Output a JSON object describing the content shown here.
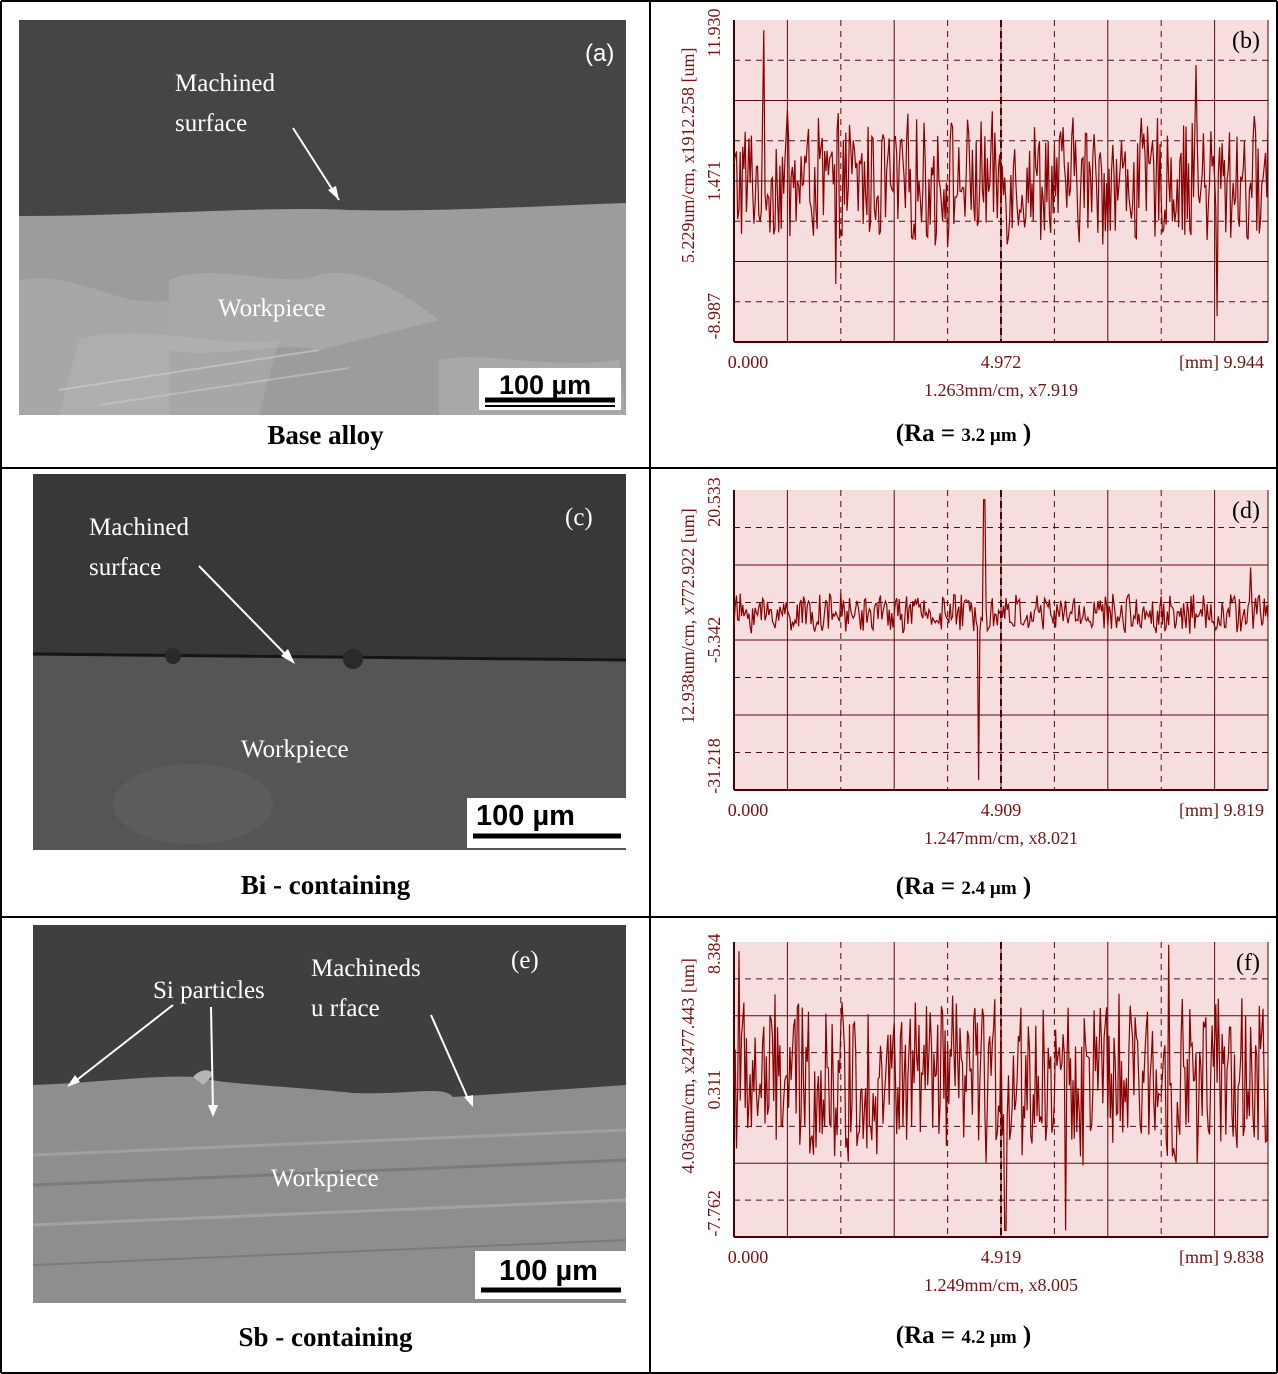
{
  "panels": [
    {
      "id": "a",
      "label": "(a)",
      "annotations": [
        "Machined surface",
        "Workpiece"
      ],
      "scale_bar": "100 µm",
      "caption": "Base alloy"
    },
    {
      "id": "c",
      "label": "(c)",
      "annotations": [
        "Machined surface",
        "Workpiece"
      ],
      "scale_bar": "100 µm",
      "caption": "Bi - containing"
    },
    {
      "id": "e",
      "label": "(e)",
      "annotations": [
        "Machinedsu rface",
        "Si particles",
        "Workpiece"
      ],
      "scale_bar": "100 µm",
      "caption": "Sb - containing"
    }
  ],
  "chart_data": [
    {
      "type": "line",
      "label": "(b)",
      "ylabel": "5.229um/cm, x1912.258   [um]",
      "xlabel": "1.263mm/cm, x7.919",
      "x_ticks": [
        "0.000",
        "4.972",
        "[mm] 9.944"
      ],
      "y_ticks": [
        "11.930",
        "1.471",
        "-8.987"
      ],
      "xlim": [
        0,
        9.944
      ],
      "ylim": [
        -11.0,
        14.0
      ],
      "profile": {
        "mean": 1.471,
        "amplitude": 3.2,
        "spikes": [
          [
            0.55,
            13.2
          ],
          [
            1.0,
            7.0
          ],
          [
            1.9,
            -6.5
          ],
          [
            8.6,
            10.5
          ],
          [
            9.0,
            -9.0
          ]
        ]
      },
      "caption_prefix": "(Ra = ",
      "caption_value": "3.2 µm",
      "caption_suffix": " )",
      "ra": 3.2
    },
    {
      "type": "line",
      "label": "(d)",
      "ylabel": "12.938um/cm, x772.922   [um]",
      "xlabel": "1.247mm/cm, x8.021",
      "x_ticks": [
        "0.000",
        "4.909",
        "[mm] 9.819"
      ],
      "y_ticks": [
        "20.533",
        "-5.342",
        "-31.218"
      ],
      "xlim": [
        0,
        9.819
      ],
      "ylim": [
        -36.0,
        26.0
      ],
      "profile": {
        "mean": 0.5,
        "amplitude": 2.6,
        "spikes": [
          [
            4.6,
            24.0
          ],
          [
            4.5,
            -34.0
          ],
          [
            9.5,
            10.0
          ]
        ]
      },
      "caption_prefix": "(Ra = ",
      "caption_value": "2.4 µm",
      "caption_suffix": " )",
      "ra": 2.4
    },
    {
      "type": "line",
      "label": "(f)",
      "ylabel": "4.036um/cm, x2477.443   [um]",
      "xlabel": "1.249mm/cm, x8.005",
      "x_ticks": [
        "0.000",
        "4.919",
        "[mm] 9.838"
      ],
      "y_ticks": [
        "8.384",
        "0.311",
        "-7.762"
      ],
      "xlim": [
        0,
        9.838
      ],
      "ylim": [
        -11.0,
        11.2
      ],
      "profile": {
        "mean": 0.8,
        "amplitude": 4.0,
        "spikes": [
          [
            0.1,
            10.5
          ],
          [
            8.0,
            11.0
          ],
          [
            5.0,
            -10.5
          ],
          [
            6.1,
            -10.5
          ]
        ]
      },
      "caption_prefix": "(Ra = ",
      "caption_value": "4.2 µm",
      "caption_suffix": " )",
      "ra": 4.2
    }
  ],
  "colors": {
    "trace": "#8b0000",
    "plot_bg": "#f6dede",
    "axis_text": "#7a1010",
    "grid": "#5a0a0a"
  }
}
